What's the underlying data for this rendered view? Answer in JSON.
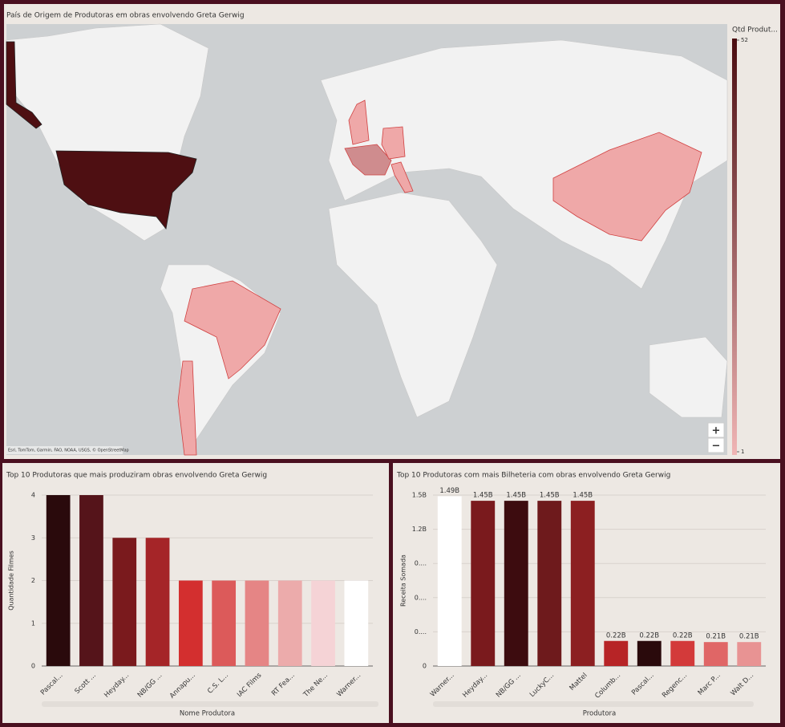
{
  "chart_data": [
    {
      "type": "map",
      "title": "País de Origem de Produtoras em obras envolvendo Greta Gerwig",
      "legend_title": "Qtd Produt...",
      "legend_ticks": [
        1,
        52
      ],
      "legend_colors": [
        "#f0b5b5",
        "#4a0c10"
      ],
      "zoom_controls": [
        "+",
        "−"
      ],
      "attribution": "Esri, TomTom, Garmin, FAO, NOAA, USGS, © OpenStreetMap"
    },
    {
      "type": "bar",
      "title": "Top 10 Produtoras que mais produziram obras envolvendo Greta Gerwig",
      "x_label": "Nome Produtora",
      "y_label": "Quantidade Filmes",
      "categories": [
        "Pascal...",
        "Scott ...",
        "Heyday...",
        "NB/GG ...",
        "Annapu...",
        "C.S. L...",
        "IAC Films",
        "RT Fea...",
        "The Ne...",
        "Warner..."
      ],
      "values": [
        4,
        4,
        3,
        3,
        2,
        2,
        2,
        2,
        2,
        2
      ],
      "colors": [
        "#2a0a0c",
        "#55141a",
        "#7a1a1d",
        "#a52528",
        "#d32f2f",
        "#dc5a5a",
        "#e58585",
        "#ecabab",
        "#f5d3d6",
        "#ffffff"
      ],
      "ylim": [
        0,
        4
      ],
      "yticks": [
        0,
        1,
        2,
        3,
        4
      ],
      "grid": true
    },
    {
      "type": "bar",
      "title": "Top 10 Produtoras com mais Bilheteria com obras envolvendo Greta Gerwig",
      "x_label": "Produtora",
      "y_label": "Receita Somada",
      "categories": [
        "Warner...",
        "Heyday...",
        "NB/GG ...",
        "LuckyC...",
        "Mattel",
        "Columb...",
        "Pascal...",
        "Regenc...",
        "Marc P...",
        "Walt D..."
      ],
      "values": [
        1490000000,
        1450000000,
        1450000000,
        1450000000,
        1450000000,
        220000000,
        220000000,
        220000000,
        210000000,
        210000000
      ],
      "value_labels": [
        "1.49B",
        "1.45B",
        "1.45B",
        "1.45B",
        "1.45B",
        "0.22B",
        "0.22B",
        "0.22B",
        "0.21B",
        "0.21B"
      ],
      "colors": [
        "#ffffff",
        "#7a1a1d",
        "#3d0c0f",
        "#6e1a1c",
        "#8c1f21",
        "#b72426",
        "#2a0a0c",
        "#d33a3a",
        "#e06666",
        "#e89393"
      ],
      "ylim": [
        0,
        1500000000
      ],
      "yticks": [
        0,
        {
          "value": 300000000,
          "label": "0...."
        },
        {
          "value": 600000000,
          "label": "0...."
        },
        {
          "value": 900000000,
          "label": "0...."
        },
        {
          "value": 1200000000,
          "label": "1.2B"
        },
        {
          "value": 1500000000,
          "label": "1.5B"
        }
      ],
      "grid": true
    }
  ]
}
